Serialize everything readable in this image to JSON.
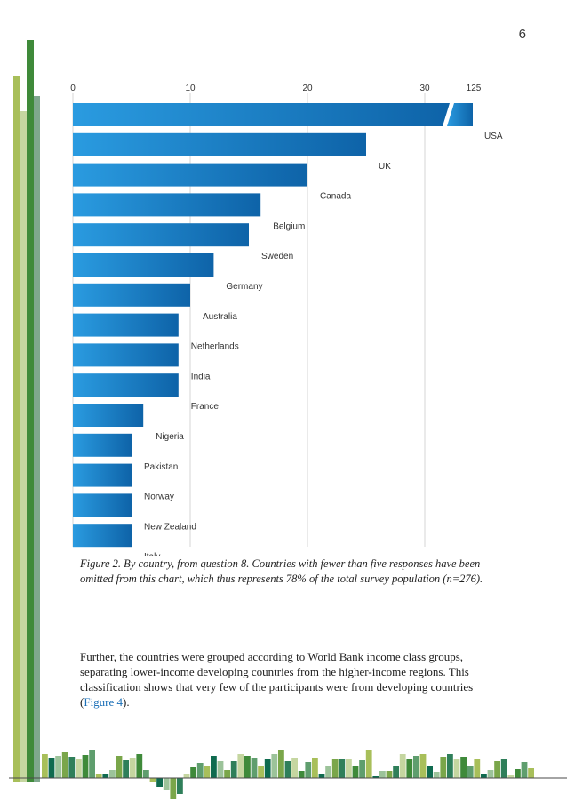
{
  "page": {
    "number": "6"
  },
  "chart_data": {
    "type": "bar",
    "orientation": "horizontal",
    "categories": [
      "USA",
      "UK",
      "Canada",
      "Belgium",
      "Sweden",
      "Germany",
      "Australia",
      "Netherlands",
      "India",
      "France",
      "Nigeria",
      "Pakistan",
      "Norway",
      "New Zealand",
      "Italy"
    ],
    "values": [
      125,
      25,
      20,
      16,
      15,
      12,
      10,
      9,
      9,
      9,
      6,
      5,
      5,
      5,
      5
    ],
    "x_ticks": [
      "0",
      "10",
      "20",
      "30",
      "125"
    ],
    "xlim": [
      0,
      30
    ],
    "axis_break": {
      "after": 30,
      "resume_label": "125"
    },
    "grid": true,
    "bar_color": "#1b7fc4"
  },
  "caption": "Figure 2.   By country, from question 8. Countries with fewer than five responses have been omitted from this chart, which thus represents 78% of the total survey population (n=276).",
  "body": {
    "text_before": "Further, the countries were grouped according to World Bank income class groups, separating lower-income developing countries from the higher-income regions. This classification shows that very few of the participants were from developing countries (",
    "link_text": "Figure 4",
    "text_after": ")."
  }
}
